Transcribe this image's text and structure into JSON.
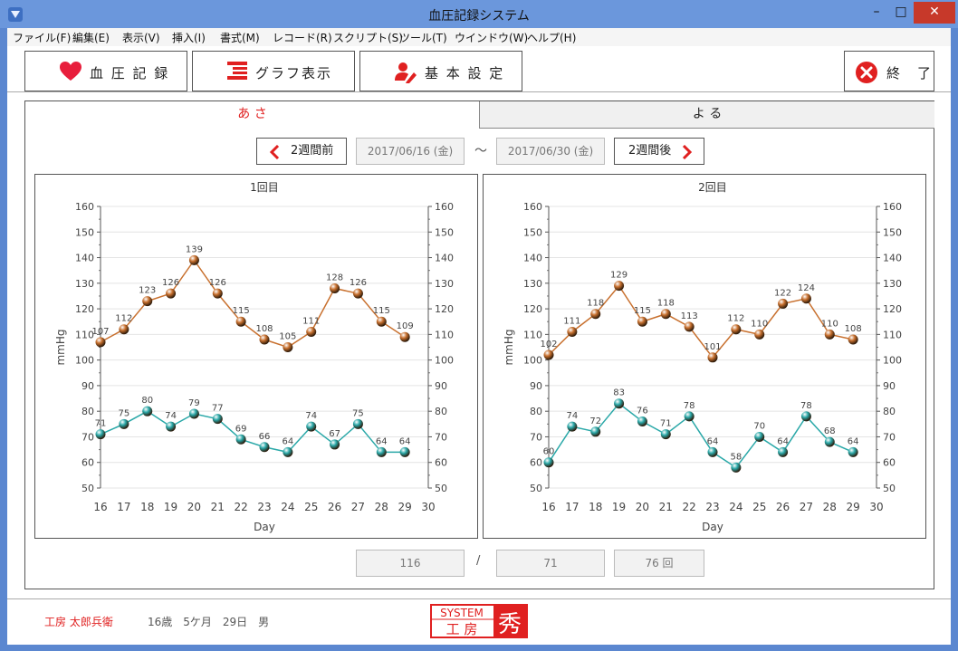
{
  "window": {
    "title": "血圧記録システム",
    "min_glyph": "–",
    "max_glyph": "□",
    "close_glyph": "✕"
  },
  "menu": [
    "ファイル(F)",
    "編集(E)",
    "表示(V)",
    "挿入(I)",
    "書式(M)",
    "レコード(R)",
    "スクリプト(S)",
    "ツール(T)",
    "ウインドウ(W)",
    "ヘルプ(H)"
  ],
  "toolbar": {
    "record_label": "血 圧 記 録",
    "graph_label": "グラフ表示",
    "settings_label": "基 本 設 定",
    "exit_label": "終　了"
  },
  "tabs": {
    "morning": "あ さ",
    "night": "よ る"
  },
  "period": {
    "prev_label": "2週間前",
    "start": "2017/06/16 (金)",
    "separator": "～",
    "end": "2017/06/30 (金)",
    "next_label": "2週間後"
  },
  "colors": {
    "systolic": "#c8702e",
    "diastolic": "#2aa8a8",
    "accent_red": "#e02020"
  },
  "chart_data": [
    {
      "type": "line",
      "title": "1回目",
      "xlabel": "Day",
      "ylabel": "mmHg",
      "ylim": [
        50,
        160
      ],
      "xlim": [
        16,
        30
      ],
      "yticks": [
        50,
        60,
        70,
        80,
        90,
        100,
        110,
        120,
        130,
        140,
        150,
        160
      ],
      "xticks": [
        16,
        17,
        18,
        19,
        20,
        21,
        22,
        23,
        24,
        25,
        26,
        27,
        28,
        29,
        30
      ],
      "grid": true,
      "x": [
        16,
        17,
        18,
        19,
        20,
        21,
        22,
        23,
        24,
        25,
        26,
        27,
        28,
        29
      ],
      "series": [
        {
          "values": [
            107,
            112,
            123,
            126,
            139,
            126,
            115,
            108,
            105,
            111,
            128,
            126,
            115,
            109
          ],
          "color": "#c8702e"
        },
        {
          "values": [
            71,
            75,
            80,
            74,
            79,
            77,
            69,
            66,
            64,
            74,
            67,
            75,
            64,
            64
          ],
          "color": "#2aa8a8"
        }
      ]
    },
    {
      "type": "line",
      "title": "2回目",
      "xlabel": "Day",
      "ylabel": "mmHg",
      "ylim": [
        50,
        160
      ],
      "xlim": [
        16,
        30
      ],
      "yticks": [
        50,
        60,
        70,
        80,
        90,
        100,
        110,
        120,
        130,
        140,
        150,
        160
      ],
      "xticks": [
        16,
        17,
        18,
        19,
        20,
        21,
        22,
        23,
        24,
        25,
        26,
        27,
        28,
        29,
        30
      ],
      "grid": true,
      "x": [
        16,
        17,
        18,
        19,
        20,
        21,
        22,
        23,
        24,
        25,
        26,
        27,
        28,
        29
      ],
      "series": [
        {
          "values": [
            102,
            111,
            118,
            129,
            115,
            118,
            113,
            101,
            112,
            110,
            122,
            124,
            110,
            108
          ],
          "color": "#c8702e"
        },
        {
          "values": [
            60,
            74,
            72,
            83,
            76,
            71,
            78,
            64,
            58,
            70,
            64,
            78,
            68,
            64
          ],
          "color": "#2aa8a8"
        }
      ]
    }
  ],
  "summary": {
    "systolic_avg": "116",
    "separator": "/",
    "diastolic_avg": "71",
    "count": "76 回"
  },
  "user": {
    "name": "工房 太郎兵衛",
    "age": "16歳　5ケ月　29日　男"
  },
  "logo": {
    "line1": "SYSTEM",
    "line2": "工 房",
    "mark": "秀"
  }
}
